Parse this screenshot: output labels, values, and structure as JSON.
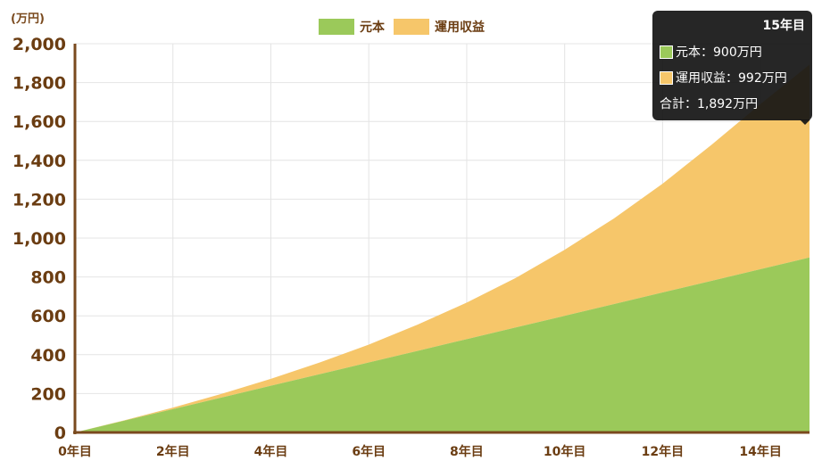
{
  "chart_data": {
    "type": "area",
    "stacked": true,
    "unit_label": "(万円)",
    "categories": [
      "0年目",
      "1年目",
      "2年目",
      "3年目",
      "4年目",
      "5年目",
      "6年目",
      "7年目",
      "8年目",
      "9年目",
      "10年目",
      "11年目",
      "12年目",
      "13年目",
      "14年目",
      "15年目"
    ],
    "x_tick_labels": [
      "0年目",
      "2年目",
      "4年目",
      "6年目",
      "8年目",
      "10年目",
      "12年目",
      "14年目"
    ],
    "y_tick_labels": [
      "0",
      "200",
      "400",
      "600",
      "800",
      "1,000",
      "1,200",
      "1,400",
      "1,600",
      "1,800",
      "2,000"
    ],
    "ylim": [
      0,
      2000
    ],
    "grid": true,
    "legend_position": "top",
    "series": [
      {
        "name": "元本",
        "color": "#9bc95a",
        "values": [
          0,
          60,
          120,
          180,
          240,
          300,
          360,
          420,
          480,
          540,
          600,
          660,
          720,
          780,
          840,
          900
        ]
      },
      {
        "name": "運用収益",
        "color": "#f6c66a",
        "values": [
          0,
          2,
          8,
          19,
          36,
          60,
          92,
          135,
          188,
          255,
          340,
          440,
          560,
          700,
          850,
          992
        ]
      }
    ]
  },
  "tooltip": {
    "title": "15年目",
    "rows": [
      {
        "label": "元本：900万円",
        "color": "#9bc95a"
      },
      {
        "label": "運用収益：992万円",
        "color": "#f6c66a"
      }
    ],
    "total": "合計：1,892万円"
  }
}
